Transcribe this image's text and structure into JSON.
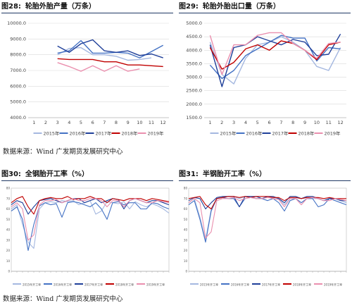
{
  "panels": [
    {
      "id": "p28",
      "num": "图28:",
      "title": "轮胎外胎产量（万条）"
    },
    {
      "id": "p29",
      "num": "图29:",
      "title": "轮胎外胎出口量（万条）"
    },
    {
      "id": "p30",
      "num": "图30:",
      "title": "全钢胎开工率（%）"
    },
    {
      "id": "p31",
      "num": "图31:",
      "title": "半钢胎开工率（%）"
    }
  ],
  "sources": [
    "数据来源：Wind  广发期货发展研究中心",
    "数据来源：Wind  广发期货发展研究中心"
  ],
  "chart_data": [
    {
      "type": "line",
      "title": "轮胎外胎产量（万条）",
      "x": [
        1,
        2,
        3,
        4,
        5,
        6,
        7,
        8,
        9,
        10,
        11,
        12
      ],
      "xticks": [
        "1",
        "2",
        "3",
        "4",
        "5",
        "6",
        "7",
        "8",
        "9",
        "10",
        "11",
        "12"
      ],
      "ylim": [
        4000,
        10000
      ],
      "yticks": [
        "4000.0",
        "5000.0",
        "6000.0",
        "7000.0",
        "8000.0",
        "9000.0",
        "10000.0"
      ],
      "grid": true,
      "legend": "bottom",
      "series": [
        {
          "name": "2015年",
          "color": "#a5b8e0",
          "values": [
            null,
            null,
            8000,
            8400,
            8450,
            8000,
            8000,
            7900,
            7650,
            7700,
            7800,
            null
          ]
        },
        {
          "name": "2016年",
          "color": "#4472c4",
          "values": [
            null,
            null,
            8100,
            8250,
            8900,
            8100,
            8100,
            8150,
            8100,
            7800,
            8200,
            8600
          ]
        },
        {
          "name": "2017年",
          "color": "#1f3f99",
          "values": [
            null,
            null,
            8550,
            8150,
            8700,
            8950,
            8250,
            8150,
            8250,
            7950,
            8050,
            7800
          ]
        },
        {
          "name": "2018年",
          "color": "#c00000",
          "values": [
            null,
            null,
            7750,
            7700,
            7700,
            7700,
            7550,
            7550,
            7350,
            7350,
            7300,
            7250
          ]
        },
        {
          "name": "2019年",
          "color": "#ea8fae",
          "values": [
            null,
            null,
            7500,
            7250,
            6950,
            7300,
            6950,
            7300,
            6950,
            7100,
            null,
            null
          ]
        }
      ]
    },
    {
      "type": "line",
      "title": "轮胎外胎出口量（万条）",
      "x": [
        1,
        2,
        3,
        4,
        5,
        6,
        7,
        8,
        9,
        10,
        11,
        12
      ],
      "xticks": [
        "1",
        "2",
        "3",
        "4",
        "5",
        "6",
        "7",
        "8",
        "9",
        "10",
        "11",
        "12"
      ],
      "ylim": [
        1500,
        5000
      ],
      "yticks": [
        "1500.0",
        "2000.0",
        "2500.0",
        "3000.0",
        "3500.0",
        "4000.0",
        "4500.0",
        "5000.0"
      ],
      "grid": true,
      "legend": "bottom",
      "series": [
        {
          "name": "2015年",
          "color": "#a5b8e0",
          "values": [
            4300,
            3100,
            2750,
            3700,
            4200,
            4300,
            4500,
            4300,
            4000,
            3400,
            3250,
            4100
          ]
        },
        {
          "name": "2016年",
          "color": "#4472c4",
          "values": [
            3450,
            2950,
            3250,
            3800,
            4050,
            4300,
            4550,
            4450,
            4450,
            3600,
            4100,
            4050
          ]
        },
        {
          "name": "2017年",
          "color": "#1f3f99",
          "values": [
            4200,
            2650,
            4100,
            4200,
            4500,
            4350,
            4200,
            4400,
            4300,
            3800,
            3850,
            4600
          ]
        },
        {
          "name": "2018年",
          "color": "#c00000",
          "values": [
            4100,
            3300,
            3550,
            4050,
            4200,
            4000,
            4350,
            4250,
            4000,
            3650,
            4200,
            4300
          ]
        },
        {
          "name": "2019年",
          "color": "#ea8fae",
          "values": [
            4550,
            3100,
            4200,
            4200,
            4550,
            4650,
            4650,
            4250,
            4000,
            3700,
            4250,
            4300
          ]
        }
      ]
    },
    {
      "type": "line",
      "title": "全钢胎开工率（%）",
      "ylim": [
        0,
        80
      ],
      "grid": false,
      "legend": "bottom",
      "series": [
        {
          "name": "2015年开工率",
          "color": "#a5b8e0",
          "values": [
            60,
            64,
            45,
            28,
            22,
            60,
            66,
            67,
            66,
            68,
            67,
            68,
            64,
            66,
            68,
            55,
            58,
            67,
            66,
            65,
            67,
            60,
            67,
            64,
            62,
            65,
            63,
            60,
            56
          ]
        },
        {
          "name": "2016年开工率",
          "color": "#4472c4",
          "values": [
            58,
            62,
            50,
            20,
            45,
            63,
            66,
            64,
            65,
            52,
            66,
            67,
            66,
            64,
            62,
            66,
            60,
            50,
            66,
            67,
            64,
            66,
            66,
            60,
            60,
            66,
            65,
            62,
            60
          ]
        },
        {
          "name": "2017年开工率",
          "color": "#1f3f99",
          "values": [
            64,
            68,
            66,
            55,
            62,
            68,
            69,
            70,
            68,
            66,
            68,
            70,
            70,
            66,
            68,
            70,
            66,
            68,
            70,
            69,
            60,
            68,
            70,
            68,
            66,
            68,
            68,
            66,
            64
          ]
        },
        {
          "name": "2018年开工率",
          "color": "#c00000",
          "values": [
            66,
            70,
            72,
            62,
            55,
            68,
            70,
            71,
            70,
            70,
            72,
            69,
            70,
            70,
            72,
            70,
            70,
            66,
            70,
            69,
            68,
            70,
            70,
            70,
            68,
            70,
            69,
            68,
            67
          ]
        },
        {
          "name": "2019年开工率",
          "color": "#ea8fae",
          "values": [
            62,
            66,
            60,
            30,
            35,
            64,
            68,
            68,
            69,
            66,
            68,
            70,
            68,
            68,
            70,
            70,
            68,
            62,
            68,
            68,
            62,
            68,
            70,
            68,
            66,
            66,
            68,
            67,
            66
          ]
        }
      ]
    },
    {
      "type": "line",
      "title": "半钢胎开工率（%）",
      "ylim": [
        0,
        80
      ],
      "grid": false,
      "legend": "bottom",
      "series": [
        {
          "name": "2015年开工率",
          "color": "#a5b8e0",
          "values": [
            66,
            70,
            52,
            30,
            60,
            70,
            71,
            72,
            72,
            70,
            72,
            72,
            70,
            70,
            72,
            70,
            70,
            64,
            70,
            70,
            66,
            70,
            70,
            70,
            68,
            70,
            70,
            68,
            66
          ]
        },
        {
          "name": "2016年开工率",
          "color": "#4472c4",
          "values": [
            64,
            68,
            50,
            28,
            58,
            70,
            71,
            70,
            70,
            62,
            70,
            71,
            70,
            70,
            68,
            70,
            66,
            58,
            68,
            70,
            66,
            70,
            70,
            62,
            64,
            70,
            68,
            66,
            64
          ]
        },
        {
          "name": "2017年开工率",
          "color": "#1f3f99",
          "values": [
            68,
            71,
            70,
            60,
            66,
            71,
            72,
            72,
            72,
            62,
            72,
            72,
            72,
            70,
            72,
            72,
            70,
            66,
            72,
            72,
            70,
            72,
            72,
            70,
            68,
            70,
            70,
            68,
            68
          ]
        },
        {
          "name": "2018年开工率",
          "color": "#c00000",
          "values": [
            70,
            71,
            72,
            64,
            60,
            70,
            71,
            72,
            72,
            71,
            72,
            71,
            72,
            72,
            72,
            71,
            71,
            68,
            71,
            71,
            70,
            71,
            71,
            71,
            70,
            71,
            70,
            70,
            70
          ]
        },
        {
          "name": "2019年开工率",
          "color": "#ea8fae",
          "values": [
            66,
            70,
            66,
            32,
            38,
            68,
            70,
            70,
            71,
            68,
            70,
            71,
            70,
            70,
            71,
            70,
            69,
            62,
            70,
            70,
            64,
            70,
            71,
            70,
            68,
            68,
            70,
            69,
            68
          ]
        }
      ]
    }
  ]
}
